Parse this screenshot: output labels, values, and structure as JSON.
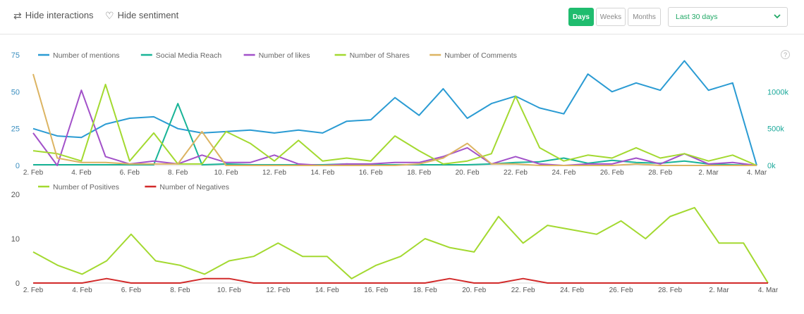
{
  "toolbar": {
    "hide_interactions": "Hide interactions",
    "hide_sentiment": "Hide sentiment",
    "periods": {
      "days": "Days",
      "weeks": "Weeks",
      "months": "Months",
      "active": "days"
    },
    "date_range": "Last 30 days",
    "accent": "#1fbc6e"
  },
  "chart_data": [
    {
      "type": "line",
      "x": [
        "2. Feb",
        "3. Feb",
        "4. Feb",
        "5. Feb",
        "6. Feb",
        "7. Feb",
        "8. Feb",
        "9. Feb",
        "10. Feb",
        "11. Feb",
        "12. Feb",
        "13. Feb",
        "14. Feb",
        "15. Feb",
        "16. Feb",
        "17. Feb",
        "18. Feb",
        "19. Feb",
        "20. Feb",
        "21. Feb",
        "22. Feb",
        "23. Feb",
        "24. Feb",
        "25. Feb",
        "26. Feb",
        "27. Feb",
        "28. Feb",
        "1. Mar",
        "2. Mar",
        "3. Mar",
        "4. Mar"
      ],
      "x_tick_labels": [
        "2. Feb",
        "4. Feb",
        "6. Feb",
        "8. Feb",
        "10. Feb",
        "12. Feb",
        "14. Feb",
        "16. Feb",
        "18. Feb",
        "20. Feb",
        "22. Feb",
        "24. Feb",
        "26. Feb",
        "28. Feb",
        "2. Mar",
        "4. Mar"
      ],
      "ylim": [
        0,
        75
      ],
      "y_ticks": [
        0,
        25,
        50,
        75
      ],
      "y_tick_color": "#3a8ebf",
      "y2lim": [
        0,
        1500000
      ],
      "y2_tick_labels": [
        "0k",
        "500k",
        "1000k"
      ],
      "y2_ticks": [
        0,
        500000,
        1000000
      ],
      "y2_tick_color": "#1aa89a",
      "legend_position": "top-left",
      "series": [
        {
          "name": "Number of mentions",
          "color": "#2a9bd3",
          "axis": "left",
          "values": [
            25,
            20,
            19,
            28,
            32,
            33,
            25,
            22,
            23,
            24,
            22,
            24,
            22,
            30,
            31,
            46,
            34,
            52,
            32,
            42,
            47,
            39,
            35,
            62,
            50,
            56,
            51,
            71,
            51,
            56,
            0
          ]
        },
        {
          "name": "Social Media Reach",
          "color": "#18b497",
          "axis": "right",
          "values": [
            10000,
            10000,
            10000,
            10000,
            10000,
            10000,
            840000,
            10000,
            20000,
            10000,
            10000,
            10000,
            10000,
            20000,
            10000,
            10000,
            10000,
            10000,
            10000,
            20000,
            40000,
            50000,
            100000,
            30000,
            70000,
            40000,
            30000,
            60000,
            20000,
            10000,
            0
          ]
        },
        {
          "name": "Number of likes",
          "color": "#a251c9",
          "axis": "left",
          "values": [
            22,
            0,
            51,
            6,
            1,
            3,
            1,
            7,
            2,
            2,
            7,
            1,
            0,
            1,
            1,
            2,
            2,
            6,
            12,
            1,
            6,
            1,
            0,
            1,
            1,
            5,
            1,
            8,
            1,
            2,
            0
          ]
        },
        {
          "name": "Number of Shares",
          "color": "#a3d930",
          "axis": "left",
          "values": [
            10,
            8,
            3,
            55,
            3,
            22,
            1,
            1,
            23,
            15,
            3,
            17,
            3,
            5,
            3,
            20,
            10,
            1,
            3,
            8,
            47,
            12,
            3,
            7,
            5,
            12,
            5,
            8,
            3,
            7,
            0
          ]
        },
        {
          "name": "Number of Comments",
          "color": "#dcb462",
          "axis": "left",
          "values": [
            62,
            5,
            2,
            2,
            1,
            1,
            1,
            23,
            0,
            0,
            0,
            0,
            0,
            0,
            0,
            0,
            1,
            5,
            15,
            1,
            1,
            0,
            0,
            0,
            0,
            1,
            0,
            0,
            0,
            0,
            0
          ]
        }
      ]
    },
    {
      "type": "line",
      "x": [
        "2. Feb",
        "3. Feb",
        "4. Feb",
        "5. Feb",
        "6. Feb",
        "7. Feb",
        "8. Feb",
        "9. Feb",
        "10. Feb",
        "11. Feb",
        "12. Feb",
        "13. Feb",
        "14. Feb",
        "15. Feb",
        "16. Feb",
        "17. Feb",
        "18. Feb",
        "19. Feb",
        "20. Feb",
        "21. Feb",
        "22. Feb",
        "23. Feb",
        "24. Feb",
        "25. Feb",
        "26. Feb",
        "27. Feb",
        "28. Feb",
        "1. Mar",
        "2. Mar",
        "3. Mar",
        "4. Mar"
      ],
      "x_tick_labels": [
        "2. Feb",
        "4. Feb",
        "6. Feb",
        "8. Feb",
        "10. Feb",
        "12. Feb",
        "14. Feb",
        "16. Feb",
        "18. Feb",
        "20. Feb",
        "22. Feb",
        "24. Feb",
        "26. Feb",
        "28. Feb",
        "2. Mar",
        "4. Mar"
      ],
      "ylim": [
        0,
        20
      ],
      "y_ticks": [
        0,
        10,
        20
      ],
      "legend_position": "top-left",
      "series": [
        {
          "name": "Number of Positives",
          "color": "#a3d930",
          "values": [
            7,
            4,
            2,
            5,
            11,
            5,
            4,
            2,
            5,
            6,
            9,
            6,
            6,
            1,
            4,
            6,
            10,
            8,
            7,
            15,
            9,
            13,
            12,
            11,
            14,
            10,
            15,
            17,
            9,
            9,
            0
          ]
        },
        {
          "name": "Number of Negatives",
          "color": "#d22a2a",
          "values": [
            0,
            0,
            0,
            1,
            0,
            0,
            0,
            1,
            1,
            0,
            0,
            0,
            0,
            0,
            0,
            0,
            0,
            1,
            0,
            0,
            1,
            0,
            0,
            0,
            0,
            0,
            0,
            0,
            0,
            0,
            0
          ]
        }
      ]
    }
  ]
}
